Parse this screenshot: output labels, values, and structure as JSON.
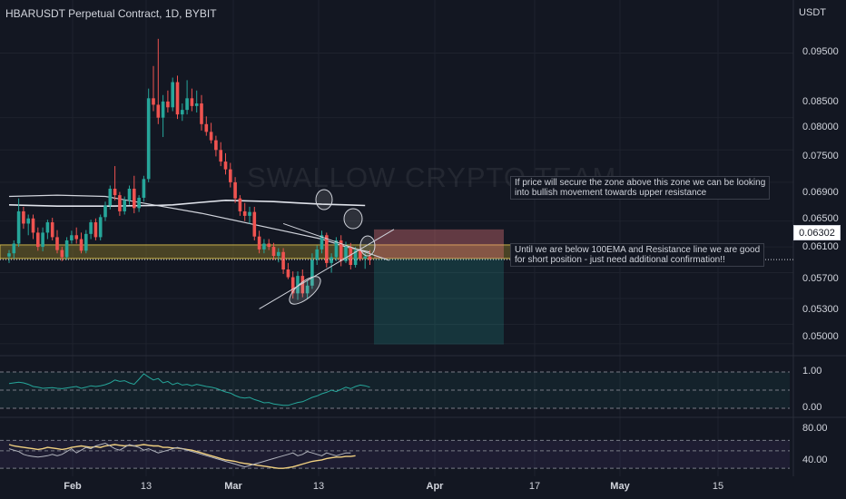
{
  "header": {
    "title": "HBARUSDT Perpetual Contract, 1D, BYBIT",
    "currency": "USDT"
  },
  "watermark": "SWALLOW CRYPTO TEAM",
  "annotations": {
    "upper_note": "If price will secure the zone above this zone we can be looking\ninto bullish movement towards upper resistance",
    "lower_note": "Until we are below 100EMA and Resistance line we are good\nfor short position - just need additional confirmation!!"
  },
  "last_price": "0.06302",
  "price_axis_labels": [
    "0.09500",
    "0.08500",
    "0.08000",
    "0.07500",
    "0.06900",
    "0.06500",
    "0.06100",
    "0.05700",
    "0.05300",
    "0.05000"
  ],
  "rsi_axis_labels": [
    "1.00",
    "0.00"
  ],
  "osc_axis_labels": [
    "80.00",
    "40.00"
  ],
  "time_axis_labels": [
    "Feb",
    "13",
    "Mar",
    "13",
    "Apr",
    "17",
    "May",
    "15"
  ],
  "colors": {
    "background": "#131722",
    "bull": "#26a69a",
    "bear": "#ef5350",
    "zone": "#8b7a2b",
    "short_stop": "#f77c80",
    "short_target": "#26a69a"
  },
  "chart_data": [
    {
      "type": "candlestick",
      "title": "HBARUSDT Perpetual Contract, 1D, BYBIT",
      "ylabel": "USDT",
      "ylim": [
        0.049,
        0.099
      ],
      "x_ticks": [
        "Feb",
        "13",
        "Mar",
        "13",
        "Apr",
        "17",
        "May",
        "15"
      ],
      "candles": [
        [
          0.0635,
          0.0645,
          0.0625,
          0.064
        ],
        [
          0.064,
          0.066,
          0.0632,
          0.0655
        ],
        [
          0.0655,
          0.0725,
          0.065,
          0.0705
        ],
        [
          0.0705,
          0.0712,
          0.0678,
          0.0686
        ],
        [
          0.0686,
          0.07,
          0.0668,
          0.0694
        ],
        [
          0.0694,
          0.07,
          0.0662,
          0.0672
        ],
        [
          0.0672,
          0.068,
          0.0644,
          0.065
        ],
        [
          0.065,
          0.068,
          0.0643,
          0.0672
        ],
        [
          0.0672,
          0.0692,
          0.0662,
          0.0688
        ],
        [
          0.0688,
          0.0695,
          0.066,
          0.0665
        ],
        [
          0.0665,
          0.0676,
          0.064,
          0.0645
        ],
        [
          0.0645,
          0.065,
          0.0628,
          0.0634
        ],
        [
          0.0634,
          0.0665,
          0.063,
          0.066
        ],
        [
          0.066,
          0.0675,
          0.0655,
          0.0668
        ],
        [
          0.0668,
          0.068,
          0.0655,
          0.0662
        ],
        [
          0.0662,
          0.0672,
          0.064,
          0.0644
        ],
        [
          0.0644,
          0.0676,
          0.064,
          0.067
        ],
        [
          0.067,
          0.0692,
          0.0662,
          0.0688
        ],
        [
          0.0688,
          0.0694,
          0.066,
          0.0665
        ],
        [
          0.0665,
          0.07,
          0.066,
          0.0696
        ],
        [
          0.0696,
          0.072,
          0.069,
          0.0714
        ],
        [
          0.0714,
          0.0745,
          0.0708,
          0.074
        ],
        [
          0.074,
          0.0775,
          0.0722,
          0.073
        ],
        [
          0.073,
          0.0735,
          0.0698,
          0.0705
        ],
        [
          0.0705,
          0.0728,
          0.07,
          0.0722
        ],
        [
          0.0722,
          0.0745,
          0.0715,
          0.074
        ],
        [
          0.074,
          0.076,
          0.0702,
          0.071
        ],
        [
          0.071,
          0.073,
          0.0704,
          0.0726
        ],
        [
          0.0726,
          0.076,
          0.072,
          0.0755
        ],
        [
          0.0755,
          0.0895,
          0.075,
          0.088
        ],
        [
          0.088,
          0.093,
          0.086,
          0.087
        ],
        [
          0.087,
          0.0972,
          0.084,
          0.085
        ],
        [
          0.085,
          0.0885,
          0.082,
          0.0875
        ],
        [
          0.0875,
          0.0892,
          0.0858,
          0.0866
        ],
        [
          0.0866,
          0.0912,
          0.086,
          0.0905
        ],
        [
          0.0905,
          0.0915,
          0.0848,
          0.0855
        ],
        [
          0.0855,
          0.0872,
          0.0845,
          0.0862
        ],
        [
          0.0862,
          0.0908,
          0.0855,
          0.088
        ],
        [
          0.088,
          0.0895,
          0.086,
          0.0868
        ],
        [
          0.0868,
          0.0892,
          0.0858,
          0.0872
        ],
        [
          0.0872,
          0.0885,
          0.083,
          0.084
        ],
        [
          0.084,
          0.0852,
          0.0822,
          0.0828
        ],
        [
          0.0828,
          0.0842,
          0.081,
          0.0815
        ],
        [
          0.0815,
          0.0822,
          0.079,
          0.08
        ],
        [
          0.08,
          0.0812,
          0.0775,
          0.0782
        ],
        [
          0.0782,
          0.0795,
          0.0762,
          0.077
        ],
        [
          0.077,
          0.078,
          0.0742,
          0.075
        ],
        [
          0.075,
          0.0758,
          0.0718,
          0.0725
        ],
        [
          0.0725,
          0.073,
          0.0698,
          0.0705
        ],
        [
          0.0705,
          0.0718,
          0.069,
          0.0698
        ],
        [
          0.0698,
          0.0712,
          0.0686,
          0.0704
        ],
        [
          0.0704,
          0.0712,
          0.066,
          0.0666
        ],
        [
          0.0666,
          0.0675,
          0.064,
          0.0646
        ],
        [
          0.0646,
          0.0662,
          0.064,
          0.0655
        ],
        [
          0.0655,
          0.0662,
          0.0645,
          0.065
        ],
        [
          0.065,
          0.0656,
          0.063,
          0.0636
        ],
        [
          0.0636,
          0.0648,
          0.0626,
          0.0642
        ],
        [
          0.0642,
          0.0648,
          0.0608,
          0.0615
        ],
        [
          0.0615,
          0.0625,
          0.06,
          0.0603
        ],
        [
          0.0603,
          0.0612,
          0.057,
          0.0578
        ],
        [
          0.0578,
          0.0612,
          0.0568,
          0.0605
        ],
        [
          0.0605,
          0.0615,
          0.0572,
          0.0578
        ],
        [
          0.0578,
          0.0598,
          0.057,
          0.059
        ],
        [
          0.059,
          0.064,
          0.0585,
          0.063
        ],
        [
          0.063,
          0.0652,
          0.0622,
          0.0646
        ],
        [
          0.0646,
          0.0675,
          0.064,
          0.0668
        ],
        [
          0.0668,
          0.0672,
          0.0618,
          0.0625
        ],
        [
          0.0625,
          0.064,
          0.061,
          0.0634
        ],
        [
          0.0634,
          0.0665,
          0.0628,
          0.066
        ],
        [
          0.066,
          0.0668,
          0.062,
          0.0628
        ],
        [
          0.0628,
          0.0658,
          0.0625,
          0.065
        ],
        [
          0.065,
          0.0656,
          0.0615,
          0.0622
        ],
        [
          0.0622,
          0.065,
          0.0618,
          0.0645
        ],
        [
          0.0645,
          0.0652,
          0.0628,
          0.0632
        ],
        [
          0.0632,
          0.064,
          0.0616,
          0.0635
        ],
        [
          0.0635,
          0.0645,
          0.0622,
          0.063
        ]
      ],
      "ema_100": [
        [
          0,
          0.0728
        ],
        [
          10,
          0.073
        ],
        [
          20,
          0.0728
        ],
        [
          30,
          0.0715
        ],
        [
          40,
          0.0702
        ],
        [
          50,
          0.0686
        ],
        [
          60,
          0.067
        ],
        [
          65,
          0.0662
        ],
        [
          70,
          0.065
        ],
        [
          75,
          0.0642
        ]
      ],
      "slow_ma": [
        [
          0,
          0.0715
        ],
        [
          10,
          0.0713
        ],
        [
          20,
          0.0713
        ],
        [
          30,
          0.0714
        ],
        [
          34,
          0.0715
        ],
        [
          40,
          0.0719
        ],
        [
          45,
          0.0722
        ],
        [
          50,
          0.0721
        ],
        [
          55,
          0.072
        ],
        [
          60,
          0.0718
        ],
        [
          65,
          0.0716
        ],
        [
          70,
          0.0715
        ],
        [
          74,
          0.0714
        ]
      ],
      "zone": [
        0.0632,
        0.0653
      ],
      "short_position": {
        "entry": 0.0632,
        "stop": 0.0677,
        "target": 0.0499
      },
      "resistance_line": [
        [
          57,
          0.0686
        ],
        [
          79,
          0.0629
        ]
      ],
      "support_line": [
        [
          52,
          0.0554
        ],
        [
          80,
          0.0677
        ]
      ],
      "last_price": 0.06302
    },
    {
      "type": "line",
      "ylim": [
        0,
        1
      ],
      "levels": [
        1.0,
        0.5,
        0.0
      ],
      "values": [
        0.68,
        0.7,
        0.72,
        0.7,
        0.66,
        0.6,
        0.58,
        0.55,
        0.56,
        0.57,
        0.55,
        0.54,
        0.56,
        0.58,
        0.6,
        0.55,
        0.58,
        0.62,
        0.6,
        0.62,
        0.65,
        0.7,
        0.78,
        0.74,
        0.76,
        0.7,
        0.66,
        0.8,
        0.95,
        0.86,
        0.78,
        0.82,
        0.7,
        0.74,
        0.65,
        0.7,
        0.64,
        0.66,
        0.62,
        0.66,
        0.63,
        0.6,
        0.58,
        0.55,
        0.5,
        0.45,
        0.42,
        0.35,
        0.3,
        0.28,
        0.3,
        0.24,
        0.2,
        0.15,
        0.16,
        0.12,
        0.1,
        0.08,
        0.08,
        0.12,
        0.16,
        0.18,
        0.24,
        0.3,
        0.34,
        0.4,
        0.44,
        0.5,
        0.46,
        0.52,
        0.58,
        0.54,
        0.6,
        0.64,
        0.62,
        0.58
      ]
    },
    {
      "type": "line",
      "ylim": [
        25,
        90
      ],
      "levels": [
        70,
        55,
        30
      ],
      "series": [
        {
          "values": [
            64,
            62,
            61,
            60,
            59,
            58,
            57,
            58,
            60,
            59,
            58,
            57,
            58,
            60,
            61,
            62,
            61,
            60,
            61,
            60,
            62,
            63,
            64,
            63,
            62,
            63,
            62,
            63,
            64,
            63,
            62,
            62,
            60,
            60,
            59,
            59,
            58,
            57,
            56,
            54,
            52,
            50,
            48,
            46,
            44,
            42,
            41,
            40,
            38,
            37,
            36,
            35,
            34,
            33,
            32,
            31,
            30,
            30,
            31,
            32,
            34,
            36,
            38,
            40,
            41,
            42,
            44,
            45,
            46,
            46,
            47,
            47,
            48
          ]
        },
        {
          "values": [
            58,
            56,
            54,
            50,
            48,
            47,
            46,
            47,
            48,
            50,
            48,
            50,
            54,
            58,
            52,
            56,
            60,
            58,
            62,
            64,
            66,
            62,
            58,
            56,
            60,
            64,
            62,
            60,
            56,
            58,
            55,
            52,
            54,
            56,
            58,
            60,
            58,
            56,
            54,
            52,
            50,
            48,
            46,
            44,
            42,
            40,
            38,
            36,
            34,
            32,
            34,
            36,
            38,
            40,
            42,
            44,
            46,
            48,
            50,
            52,
            48,
            50,
            54,
            52,
            50,
            48,
            52,
            50,
            48,
            50,
            52,
            52
          ]
        }
      ]
    }
  ]
}
